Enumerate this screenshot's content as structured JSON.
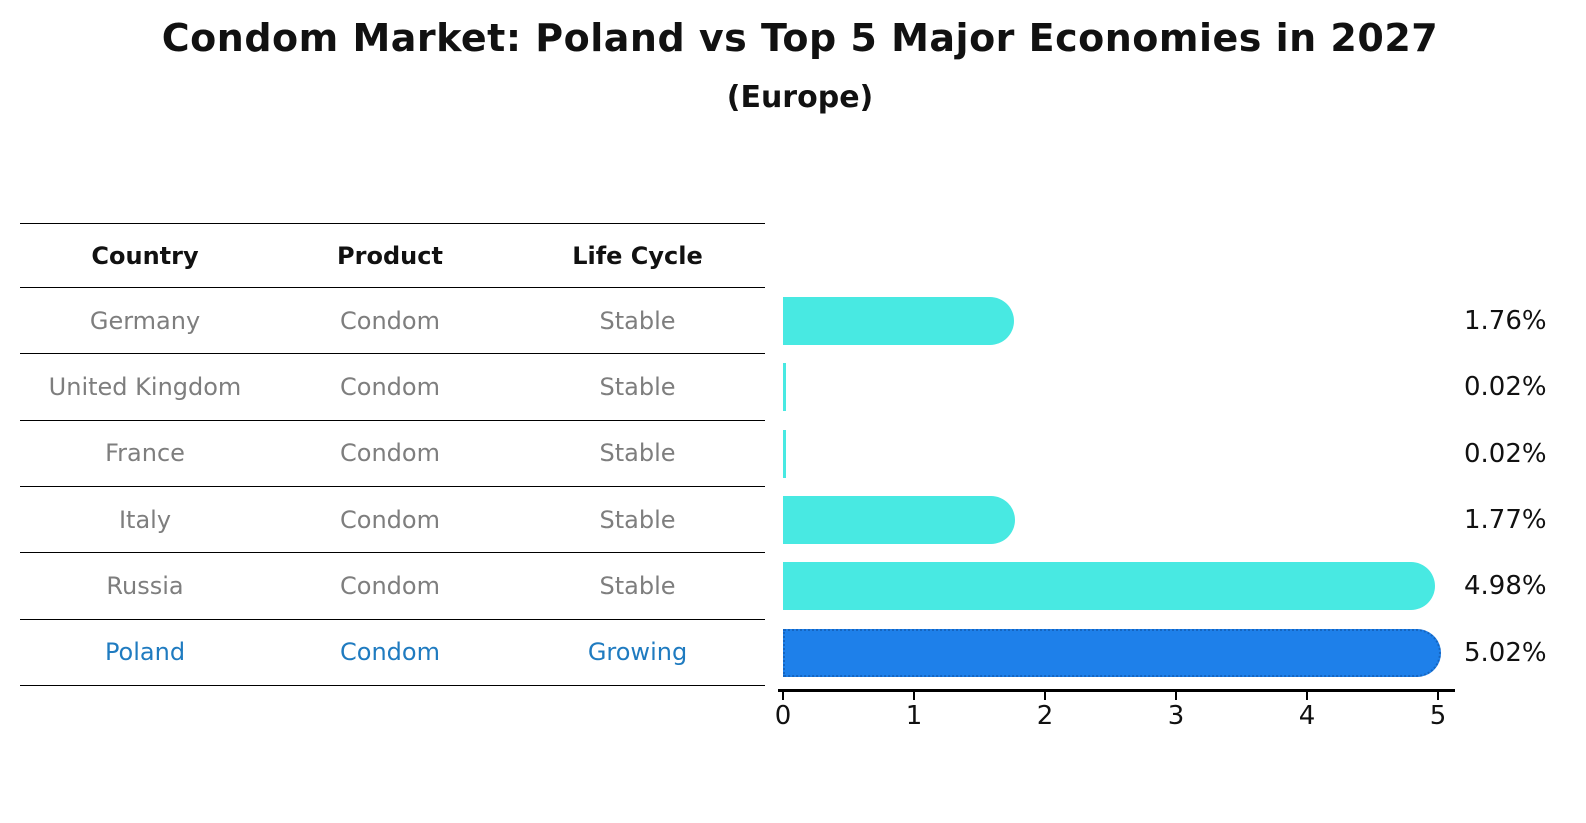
{
  "title": "Condom Market: Poland vs Top 5 Major Economies in 2027",
  "subtitle": "(Europe)",
  "table": {
    "headers": {
      "country": "Country",
      "product": "Product",
      "life_cycle": "Life Cycle"
    },
    "rows": [
      {
        "country": "Germany",
        "product": "Condom",
        "life_cycle": "Stable",
        "highlight": false
      },
      {
        "country": "United Kingdom",
        "product": "Condom",
        "life_cycle": "Stable",
        "highlight": false
      },
      {
        "country": "France",
        "product": "Condom",
        "life_cycle": "Stable",
        "highlight": false
      },
      {
        "country": "Italy",
        "product": "Condom",
        "life_cycle": "Stable",
        "highlight": false
      },
      {
        "country": "Russia",
        "product": "Condom",
        "life_cycle": "Stable",
        "highlight": false
      },
      {
        "country": "Poland",
        "product": "Condom",
        "life_cycle": "Growing",
        "highlight": true
      }
    ]
  },
  "chart_data": {
    "type": "bar",
    "orientation": "horizontal",
    "title": "Condom Market: Poland vs Top 5 Major Economies in 2027",
    "subtitle": "(Europe)",
    "categories": [
      "Germany",
      "United Kingdom",
      "France",
      "Italy",
      "Russia",
      "Poland"
    ],
    "values": [
      1.76,
      0.02,
      0.02,
      1.77,
      4.98,
      5.02
    ],
    "value_labels": [
      "1.76%",
      "0.02%",
      "0.02%",
      "1.77%",
      "4.98%",
      "5.02%"
    ],
    "unit": "%",
    "xlabel": "",
    "ylabel": "",
    "xlim": [
      0,
      5.5
    ],
    "xticks": [
      0,
      1,
      2,
      3,
      4,
      5
    ],
    "grid": false,
    "legend": false,
    "highlight_category": "Poland"
  },
  "colors": {
    "bar": "#48e9e2",
    "highlight_bar": "#1e80ea",
    "highlight_bar_border": "#1565c0",
    "highlight_text": "#1f7bc0",
    "row_text": "#7e7e7e",
    "text": "#111111",
    "background": "#ffffff"
  }
}
